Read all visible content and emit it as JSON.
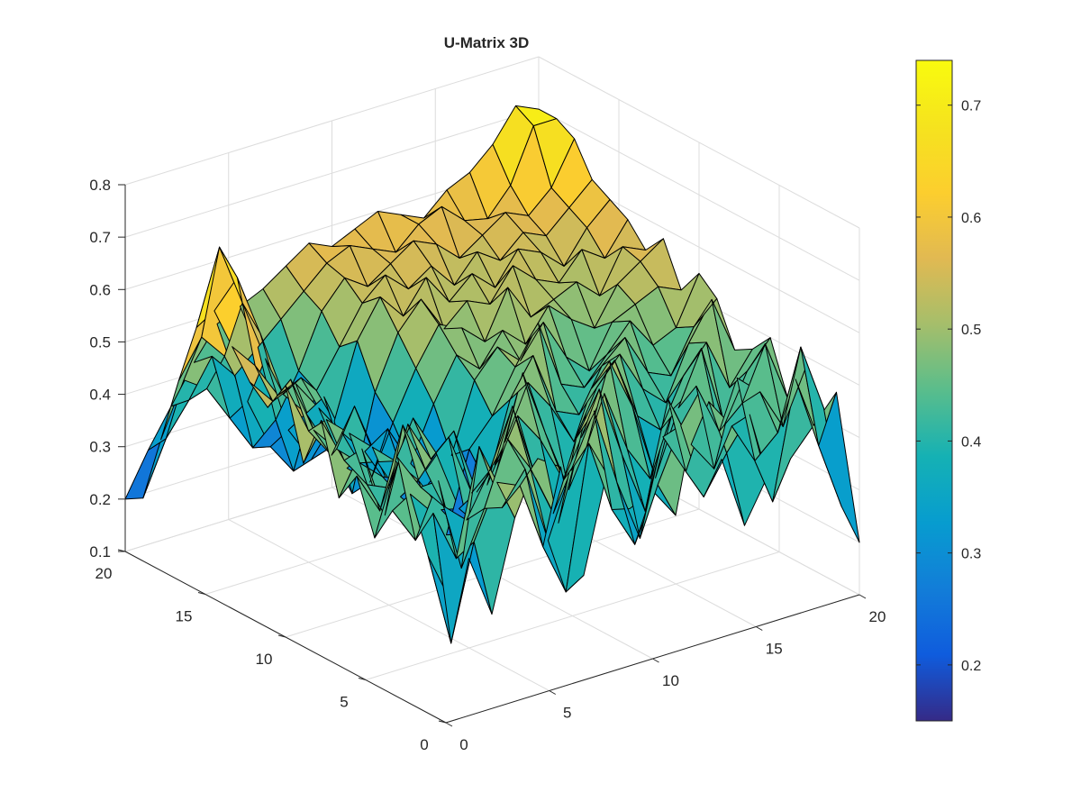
{
  "chart_data": {
    "type": "surface",
    "title": "U-Matrix 3D",
    "xlabel": "",
    "ylabel": "",
    "zlabel": "",
    "xlim": [
      0,
      20
    ],
    "ylim": [
      0,
      20
    ],
    "zlim": [
      0.1,
      0.8
    ],
    "x_ticks": [
      "0",
      "5",
      "10",
      "15",
      "20"
    ],
    "y_ticks": [
      "0",
      "5",
      "10",
      "15",
      "20"
    ],
    "z_ticks": [
      "0.1",
      "0.2",
      "0.3",
      "0.4",
      "0.5",
      "0.6",
      "0.7",
      "0.8"
    ],
    "grid": true,
    "colormap": "parula",
    "colorbar": {
      "range": [
        0.15,
        0.74
      ],
      "ticks": [
        "0.2",
        "0.3",
        "0.4",
        "0.5",
        "0.6",
        "0.7"
      ],
      "tick_values": [
        0.2,
        0.3,
        0.4,
        0.5,
        0.6,
        0.7
      ]
    },
    "grid_size": [
      19,
      19
    ],
    "z": [
      [
        0.35,
        0.4,
        0.28,
        0.45,
        0.55,
        0.52,
        0.3,
        0.48,
        0.4,
        0.42,
        0.36,
        0.58,
        0.44,
        0.3,
        0.38,
        0.4,
        0.45,
        0.5,
        0.2
      ],
      [
        0.4,
        0.22,
        0.4,
        0.5,
        0.48,
        0.35,
        0.25,
        0.52,
        0.38,
        0.3,
        0.4,
        0.5,
        0.35,
        0.42,
        0.48,
        0.3,
        0.52,
        0.38,
        0.25
      ],
      [
        0.5,
        0.45,
        0.35,
        0.55,
        0.42,
        0.48,
        0.33,
        0.45,
        0.55,
        0.4,
        0.28,
        0.46,
        0.38,
        0.5,
        0.44,
        0.36,
        0.4,
        0.55,
        0.42
      ],
      [
        0.45,
        0.38,
        0.48,
        0.3,
        0.4,
        0.52,
        0.45,
        0.35,
        0.48,
        0.56,
        0.42,
        0.3,
        0.5,
        0.4,
        0.34,
        0.5,
        0.46,
        0.38,
        0.48
      ],
      [
        0.38,
        0.52,
        0.45,
        0.4,
        0.36,
        0.44,
        0.55,
        0.4,
        0.3,
        0.45,
        0.52,
        0.4,
        0.33,
        0.45,
        0.48,
        0.38,
        0.42,
        0.52,
        0.4
      ],
      [
        0.48,
        0.4,
        0.55,
        0.45,
        0.5,
        0.38,
        0.42,
        0.5,
        0.44,
        0.35,
        0.4,
        0.55,
        0.45,
        0.3,
        0.42,
        0.52,
        0.36,
        0.45,
        0.5
      ],
      [
        0.42,
        0.5,
        0.36,
        0.52,
        0.44,
        0.48,
        0.35,
        0.4,
        0.55,
        0.42,
        0.3,
        0.48,
        0.52,
        0.4,
        0.36,
        0.45,
        0.5,
        0.4,
        0.46
      ],
      [
        0.55,
        0.46,
        0.4,
        0.38,
        0.5,
        0.42,
        0.3,
        0.25,
        0.4,
        0.5,
        0.44,
        0.36,
        0.45,
        0.5,
        0.42,
        0.38,
        0.48,
        0.55,
        0.44
      ],
      [
        0.45,
        0.52,
        0.48,
        0.44,
        0.4,
        0.35,
        0.28,
        0.22,
        0.3,
        0.45,
        0.52,
        0.4,
        0.38,
        0.46,
        0.5,
        0.42,
        0.4,
        0.48,
        0.52
      ],
      [
        0.58,
        0.48,
        0.42,
        0.5,
        0.38,
        0.3,
        0.25,
        0.2,
        0.35,
        0.4,
        0.48,
        0.55,
        0.42,
        0.4,
        0.45,
        0.5,
        0.44,
        0.46,
        0.55
      ],
      [
        0.52,
        0.56,
        0.45,
        0.4,
        0.36,
        0.32,
        0.3,
        0.28,
        0.32,
        0.45,
        0.5,
        0.46,
        0.52,
        0.44,
        0.4,
        0.48,
        0.5,
        0.52,
        0.5
      ],
      [
        0.55,
        0.5,
        0.52,
        0.46,
        0.4,
        0.35,
        0.38,
        0.3,
        0.4,
        0.48,
        0.44,
        0.5,
        0.46,
        0.52,
        0.48,
        0.45,
        0.52,
        0.55,
        0.58
      ],
      [
        0.6,
        0.55,
        0.48,
        0.5,
        0.45,
        0.3,
        0.26,
        0.36,
        0.45,
        0.52,
        0.5,
        0.46,
        0.55,
        0.48,
        0.5,
        0.52,
        0.48,
        0.56,
        0.54
      ],
      [
        0.65,
        0.7,
        0.58,
        0.45,
        0.4,
        0.32,
        0.22,
        0.4,
        0.5,
        0.55,
        0.48,
        0.52,
        0.5,
        0.56,
        0.52,
        0.5,
        0.55,
        0.52,
        0.58
      ],
      [
        0.6,
        0.74,
        0.62,
        0.5,
        0.35,
        0.28,
        0.34,
        0.48,
        0.55,
        0.5,
        0.56,
        0.5,
        0.54,
        0.5,
        0.56,
        0.54,
        0.5,
        0.56,
        0.6
      ],
      [
        0.48,
        0.55,
        0.5,
        0.4,
        0.3,
        0.24,
        0.38,
        0.45,
        0.52,
        0.56,
        0.52,
        0.55,
        0.5,
        0.55,
        0.52,
        0.56,
        0.54,
        0.58,
        0.62
      ],
      [
        0.35,
        0.45,
        0.42,
        0.35,
        0.28,
        0.32,
        0.4,
        0.5,
        0.55,
        0.52,
        0.55,
        0.58,
        0.56,
        0.52,
        0.55,
        0.58,
        0.56,
        0.6,
        0.68
      ],
      [
        0.22,
        0.32,
        0.38,
        0.45,
        0.4,
        0.44,
        0.48,
        0.52,
        0.56,
        0.58,
        0.56,
        0.54,
        0.58,
        0.6,
        0.56,
        0.55,
        0.6,
        0.7,
        0.7
      ],
      [
        0.2,
        0.28,
        0.35,
        0.42,
        0.48,
        0.5,
        0.52,
        0.55,
        0.58,
        0.56,
        0.58,
        0.6,
        0.58,
        0.56,
        0.6,
        0.62,
        0.66,
        0.72,
        0.7
      ]
    ]
  }
}
